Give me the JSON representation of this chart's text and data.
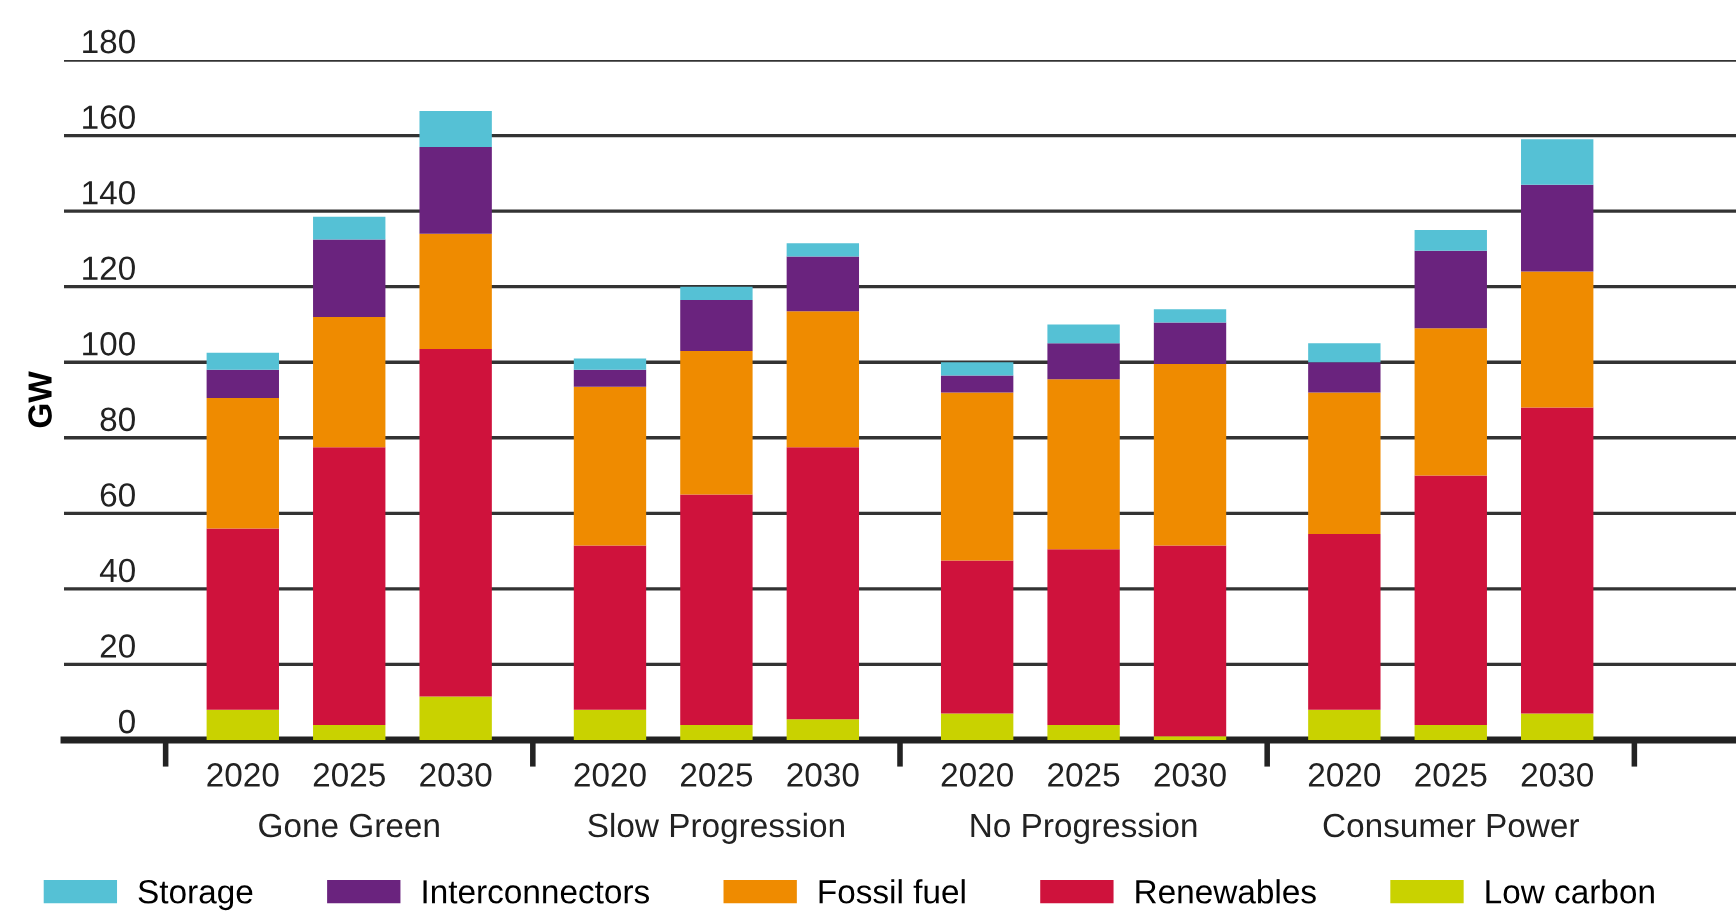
{
  "chart_data": {
    "type": "bar",
    "stacked": true,
    "ylabel": "GW",
    "categories": [
      "2020",
      "2025",
      "2030",
      "2020",
      "2025",
      "2030",
      "2020",
      "2025",
      "2030",
      "2020",
      "2025",
      "2030"
    ],
    "annotations": [
      "Gone Green",
      "Slow Progression",
      "No Progression",
      "Consumer Power"
    ],
    "series": [
      {
        "name": "Low carbon",
        "color": "#c9d200",
        "values": [
          8,
          4,
          11.5,
          8,
          4,
          5.5,
          7,
          4,
          1,
          8,
          4,
          7
        ]
      },
      {
        "name": "Renewables",
        "color": "#cf123c",
        "values": [
          48,
          73.5,
          92,
          43.5,
          61,
          72,
          40.5,
          46.5,
          50.5,
          46.5,
          66,
          81
        ]
      },
      {
        "name": "Fossil fuel",
        "color": "#ef8b00",
        "values": [
          34.5,
          34.5,
          30.5,
          42,
          38,
          36,
          44.5,
          45,
          48,
          37.5,
          39,
          36
        ]
      },
      {
        "name": "Interconnectors",
        "color": "#6a237e",
        "values": [
          7.5,
          20.5,
          23,
          4.5,
          13.5,
          14.5,
          4.5,
          9.5,
          11,
          8,
          20.5,
          23
        ]
      },
      {
        "name": "Storage",
        "color": "#55c1d5",
        "values": [
          4.5,
          6,
          9.5,
          3,
          3.5,
          3.5,
          3.5,
          5,
          3.5,
          5,
          5.5,
          12
        ]
      }
    ],
    "ylim": [
      0,
      180
    ],
    "yticks": [
      0,
      20,
      40,
      60,
      80,
      100,
      120,
      140,
      160,
      180
    ],
    "grid": "y",
    "legend": "bottom"
  }
}
